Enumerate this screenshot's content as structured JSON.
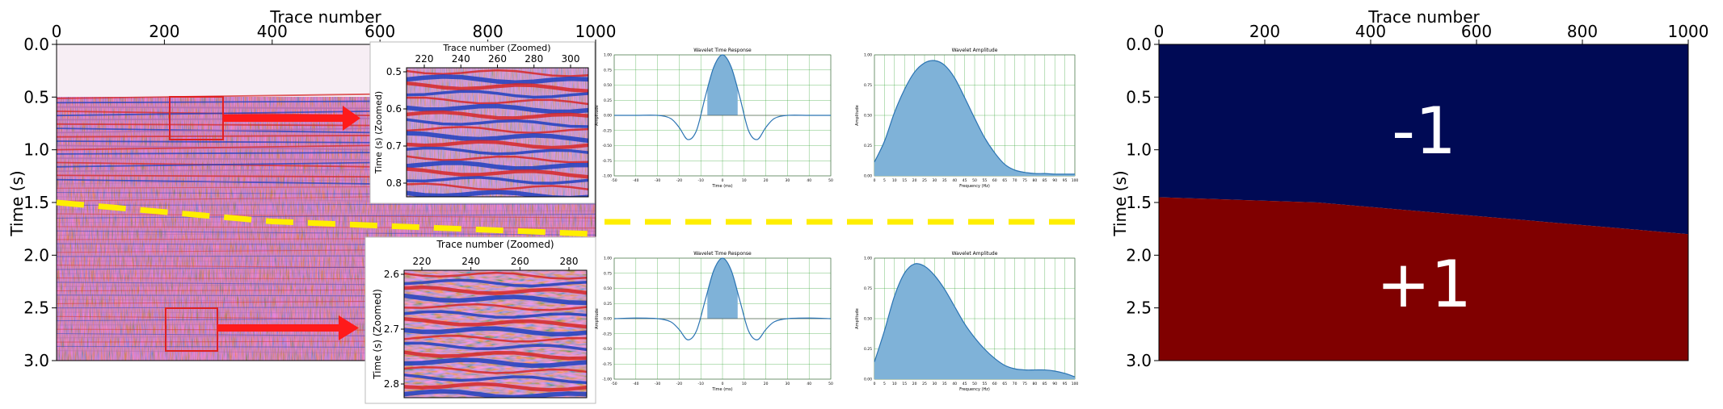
{
  "seismic_panel": {
    "x_title": "Trace number",
    "y_title": "Time (s)",
    "x_ticks": [
      "0",
      "200",
      "400",
      "600",
      "800",
      "1000"
    ],
    "y_ticks": [
      "0.0",
      "0.5",
      "1.0",
      "1.5",
      "2.0",
      "2.5",
      "3.0"
    ]
  },
  "zoom_upper": {
    "x_title": "Trace number (Zoomed)",
    "y_title": "Time (s) (Zoomed)",
    "x_ticks": [
      "220",
      "240",
      "260",
      "280",
      "300"
    ],
    "y_ticks": [
      "0.5",
      "0.6",
      "0.7",
      "0.8"
    ]
  },
  "zoom_lower": {
    "x_title": "Trace number (Zoomed)",
    "y_title": "Time (s) (Zoomed)",
    "x_ticks": [
      "220",
      "240",
      "260",
      "280"
    ],
    "y_ticks": [
      "2.6",
      "2.7",
      "2.8"
    ]
  },
  "wavelet_upper_time": {
    "title": "Wavelet Time Response",
    "xlabel": "Time (ms)",
    "ylabel": "Amplitude",
    "x_ticks": [
      "-50",
      "-40",
      "-30",
      "-20",
      "-10",
      "0",
      "10",
      "20",
      "30",
      "40",
      "50"
    ],
    "y_ticks": [
      "1.00",
      "0.75",
      "0.50",
      "0.25",
      "0.00",
      "-0.25",
      "-0.50",
      "-0.75",
      "-1.00"
    ]
  },
  "wavelet_upper_amp": {
    "title": "Wavelet Amplitude",
    "xlabel": "Frequency (Hz)",
    "ylabel": "Amplitude",
    "x_ticks": [
      "0",
      "5",
      "10",
      "15",
      "20",
      "25",
      "30",
      "35",
      "40",
      "45",
      "50",
      "55",
      "60",
      "65",
      "70",
      "75",
      "80",
      "85",
      "90",
      "95",
      "100"
    ],
    "y_ticks": [
      "1.00",
      "0.75",
      "0.50",
      "0.25",
      "0.00"
    ]
  },
  "wavelet_lower_time": {
    "title": "Wavelet Time Response",
    "xlabel": "Time (ms)",
    "ylabel": "Amplitude",
    "x_ticks": [
      "-50",
      "-40",
      "-30",
      "-20",
      "-10",
      "0",
      "10",
      "20",
      "30",
      "40",
      "50"
    ],
    "y_ticks": [
      "1.00",
      "0.75",
      "0.50",
      "0.25",
      "0.00",
      "-0.25",
      "-0.50",
      "-0.75",
      "-1.00"
    ]
  },
  "wavelet_lower_amp": {
    "title": "Wavelet Amplitude",
    "xlabel": "Frequency (Hz)",
    "ylabel": "Amplitude",
    "x_ticks": [
      "0",
      "5",
      "10",
      "15",
      "20",
      "25",
      "30",
      "35",
      "40",
      "45",
      "50",
      "55",
      "60",
      "65",
      "70",
      "75",
      "80",
      "85",
      "90",
      "95",
      "100"
    ],
    "y_ticks": [
      "1.00",
      "0.75",
      "0.50",
      "0.25",
      "0.00"
    ]
  },
  "label_panel": {
    "x_title": "Trace number",
    "y_title": "Time (s)",
    "x_ticks": [
      "0",
      "200",
      "400",
      "600",
      "800",
      "1000"
    ],
    "y_ticks": [
      "0.0",
      "0.5",
      "1.0",
      "1.5",
      "2.0",
      "2.5",
      "3.0"
    ],
    "upper_label": "-1",
    "lower_label": "+1"
  },
  "colors": {
    "seismic_positive": "#d62728",
    "seismic_negative": "#1f3fbf",
    "wavelet_fill": "#7fb2d8",
    "wavelet_line": "#2a73b2",
    "arrow": "#ff1a1a",
    "boundary_dash": "#ffee00",
    "label_upper": "#000a55",
    "label_lower": "#800000"
  },
  "chart_data": [
    {
      "type": "heatmap",
      "name": "seismic-section",
      "xlim": [
        0,
        1000
      ],
      "ylim": [
        3.0,
        0.0
      ],
      "boundary_trace": [
        0,
        400,
        1000
      ],
      "boundary_time": [
        1.5,
        1.68,
        1.8
      ],
      "zoom_windows": [
        {
          "trace": [
            210,
            300
          ],
          "time": [
            0.5,
            0.88
          ]
        },
        {
          "trace": [
            210,
            290
          ],
          "time": [
            2.55,
            2.85
          ]
        }
      ]
    },
    {
      "type": "area",
      "name": "wavelet-time-upper",
      "x": [
        -50,
        -40,
        -30,
        -24,
        -20,
        -16,
        -12,
        -8,
        -4,
        0,
        4,
        8,
        12,
        16,
        20,
        24,
        30,
        40,
        50
      ],
      "y": [
        0,
        0,
        0,
        -0.05,
        -0.2,
        -0.4,
        -0.25,
        0.3,
        0.8,
        1.0,
        0.8,
        0.3,
        -0.25,
        -0.4,
        -0.2,
        -0.05,
        0,
        0,
        0
      ],
      "xlim": [
        -50,
        50
      ],
      "ylim": [
        -1,
        1
      ]
    },
    {
      "type": "area",
      "name": "wavelet-amp-upper",
      "x": [
        0,
        5,
        10,
        15,
        20,
        25,
        30,
        35,
        40,
        45,
        50,
        55,
        60,
        65,
        70,
        75,
        80,
        85,
        90,
        95,
        100
      ],
      "y": [
        0.12,
        0.3,
        0.55,
        0.75,
        0.9,
        0.98,
        1.0,
        0.96,
        0.85,
        0.68,
        0.5,
        0.33,
        0.2,
        0.1,
        0.05,
        0.03,
        0.02,
        0.02,
        0.015,
        0.015,
        0.015
      ],
      "xlim": [
        0,
        100
      ],
      "ylim": [
        0,
        1.05
      ]
    },
    {
      "type": "area",
      "name": "wavelet-time-lower",
      "x": [
        -50,
        -40,
        -30,
        -24,
        -20,
        -16,
        -12,
        -8,
        -4,
        0,
        4,
        8,
        12,
        16,
        20,
        24,
        30,
        40,
        50
      ],
      "y": [
        0,
        0.01,
        0,
        -0.05,
        -0.18,
        -0.35,
        -0.2,
        0.3,
        0.8,
        1.0,
        0.8,
        0.3,
        -0.2,
        -0.35,
        -0.18,
        -0.05,
        0,
        0.01,
        0
      ],
      "xlim": [
        -50,
        50
      ],
      "ylim": [
        -1,
        1
      ]
    },
    {
      "type": "area",
      "name": "wavelet-amp-lower",
      "x": [
        0,
        5,
        10,
        15,
        20,
        25,
        30,
        35,
        40,
        45,
        50,
        55,
        60,
        65,
        70,
        75,
        80,
        85,
        90,
        95,
        100
      ],
      "y": [
        0.15,
        0.42,
        0.72,
        0.92,
        1.0,
        0.98,
        0.9,
        0.78,
        0.63,
        0.48,
        0.36,
        0.26,
        0.18,
        0.12,
        0.09,
        0.08,
        0.08,
        0.08,
        0.07,
        0.05,
        0.02
      ],
      "xlim": [
        0,
        100
      ],
      "ylim": [
        0,
        1.05
      ]
    },
    {
      "type": "heatmap",
      "name": "label-map",
      "xlim": [
        0,
        1000
      ],
      "ylim": [
        3.0,
        0.0
      ],
      "boundary_trace": [
        0,
        300,
        1000
      ],
      "boundary_time": [
        1.45,
        1.5,
        1.8
      ],
      "classes": [
        "-1",
        "+1"
      ]
    }
  ]
}
